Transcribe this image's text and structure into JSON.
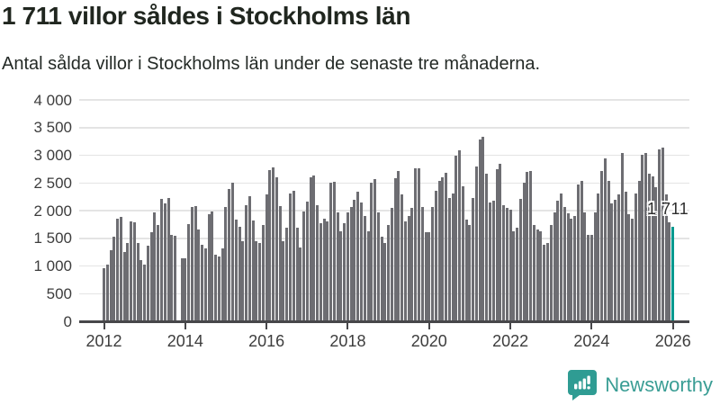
{
  "title": "1 711 villor såldes i Stockholms län",
  "subtitle": "Antal sålda villor i Stockholms län under de senaste tre månaderna.",
  "annotation_label": "1 711",
  "branding": {
    "name": "Newsworthy",
    "icon": "newsworthy-chart-bubble-icon"
  },
  "colors": {
    "bar": "#6d6d72",
    "highlight": "#00998f",
    "gridline": "#e4e4e4",
    "axis": "#47474a",
    "tick_text": "#3d3d3d",
    "brand_teal": "#2f9c93"
  },
  "chart_data": {
    "type": "bar",
    "title": "1 711 villor såldes i Stockholms län",
    "subtitle": "Antal sålda villor i Stockholms län under de senaste tre månaderna.",
    "x_description": "månader, januari 2012 till januari 2026",
    "ylim": [
      0,
      4000
    ],
    "grid": true,
    "y_ticks": [
      {
        "value": 0,
        "label": "0"
      },
      {
        "value": 500,
        "label": "500"
      },
      {
        "value": 1000,
        "label": "1 000"
      },
      {
        "value": 1500,
        "label": "1 500"
      },
      {
        "value": 2000,
        "label": "2 000"
      },
      {
        "value": 2500,
        "label": "2 500"
      },
      {
        "value": 3000,
        "label": "3 000"
      },
      {
        "value": 3500,
        "label": "3 500"
      },
      {
        "value": 4000,
        "label": "4 000"
      }
    ],
    "x_ticks": [
      {
        "index": 0,
        "label": "2012"
      },
      {
        "index": 24,
        "label": "2014"
      },
      {
        "index": 48,
        "label": "2016"
      },
      {
        "index": 72,
        "label": "2018"
      },
      {
        "index": 96,
        "label": "2020"
      },
      {
        "index": 120,
        "label": "2022"
      },
      {
        "index": 144,
        "label": "2024"
      },
      {
        "index": 168,
        "label": "2026"
      }
    ],
    "highlight_last": true,
    "last_value": 1711,
    "last_value_label": "1 711",
    "values": [
      966,
      1021,
      1292,
      1536,
      1852,
      1890,
      1254,
      1417,
      1808,
      1786,
      1417,
      1103,
      1026,
      1373,
      1607,
      1960,
      1743,
      2204,
      2134,
      2220,
      1553,
      1537,
      null,
      1146,
      1146,
      1754,
      2070,
      2080,
      1662,
      1374,
      1309,
      1933,
      1987,
      1200,
      1174,
      1309,
      2068,
      2384,
      2503,
      1836,
      1700,
      1444,
      2096,
      2258,
      1825,
      1444,
      1417,
      1743,
      2286,
      2730,
      2775,
      2600,
      2080,
      1444,
      1689,
      2313,
      2350,
      1689,
      1335,
      1990,
      2160,
      2595,
      2639,
      2096,
      1770,
      1850,
      1808,
      2503,
      2520,
      1960,
      1634,
      1770,
      1960,
      2068,
      2190,
      2340,
      2150,
      1900,
      1634,
      2510,
      2570,
      1960,
      1525,
      1410,
      1743,
      2041,
      2585,
      2710,
      2286,
      1797,
      1900,
      2041,
      2765,
      2765,
      2068,
      1607,
      1607,
      2068,
      2350,
      2530,
      2600,
      2677,
      2231,
      2313,
      2992,
      3090,
      2435,
      1840,
      1743,
      2231,
      2802,
      3290,
      3328,
      2666,
      2150,
      2177,
      2748,
      2840,
      2096,
      2050,
      2015,
      1634,
      1689,
      2204,
      2503,
      2694,
      2720,
      1743,
      1662,
      1634,
      1390,
      1417,
      1743,
      1960,
      2177,
      2313,
      2070,
      1950,
      1852,
      1906,
      2476,
      2530,
      1960,
      1553,
      1553,
      1960,
      2313,
      2720,
      2937,
      2530,
      2123,
      2200,
      2286,
      3046,
      2340,
      1933,
      1852,
      2313,
      2530,
      3008,
      3046,
      2666,
      2610,
      2420,
      3100,
      3139,
      2300,
      1790,
      1711
    ]
  }
}
